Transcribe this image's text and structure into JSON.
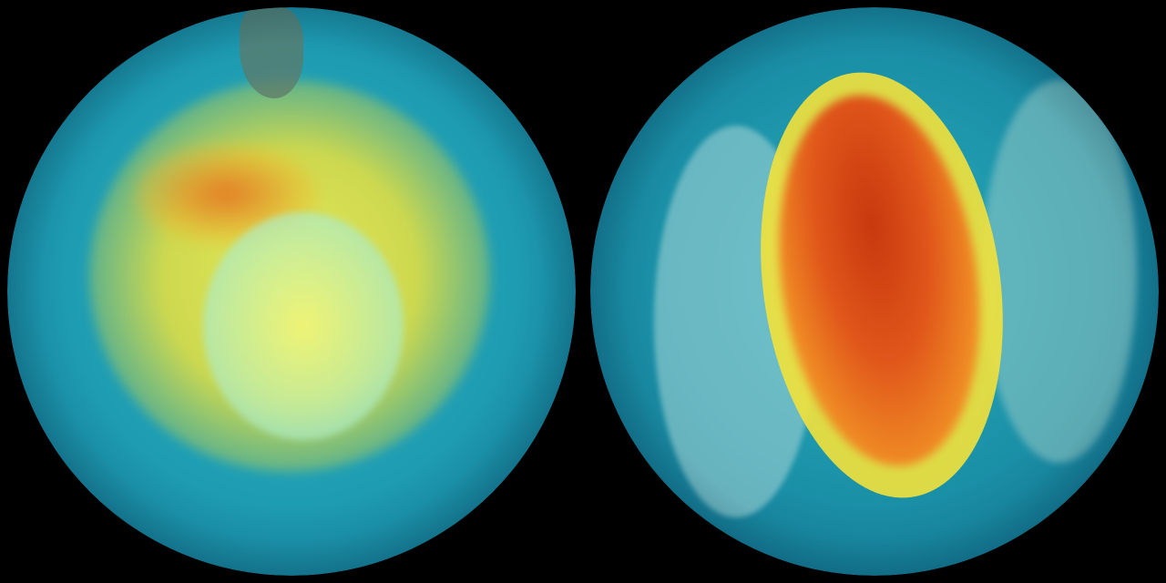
{
  "colors": {
    "background": "#000000",
    "ocean_base": "#1a8fa6",
    "low_value": "#2bb3c4",
    "mid_value": "#f2e84a",
    "high_value": "#e8501c",
    "ice": "#9fe3e0"
  }
}
